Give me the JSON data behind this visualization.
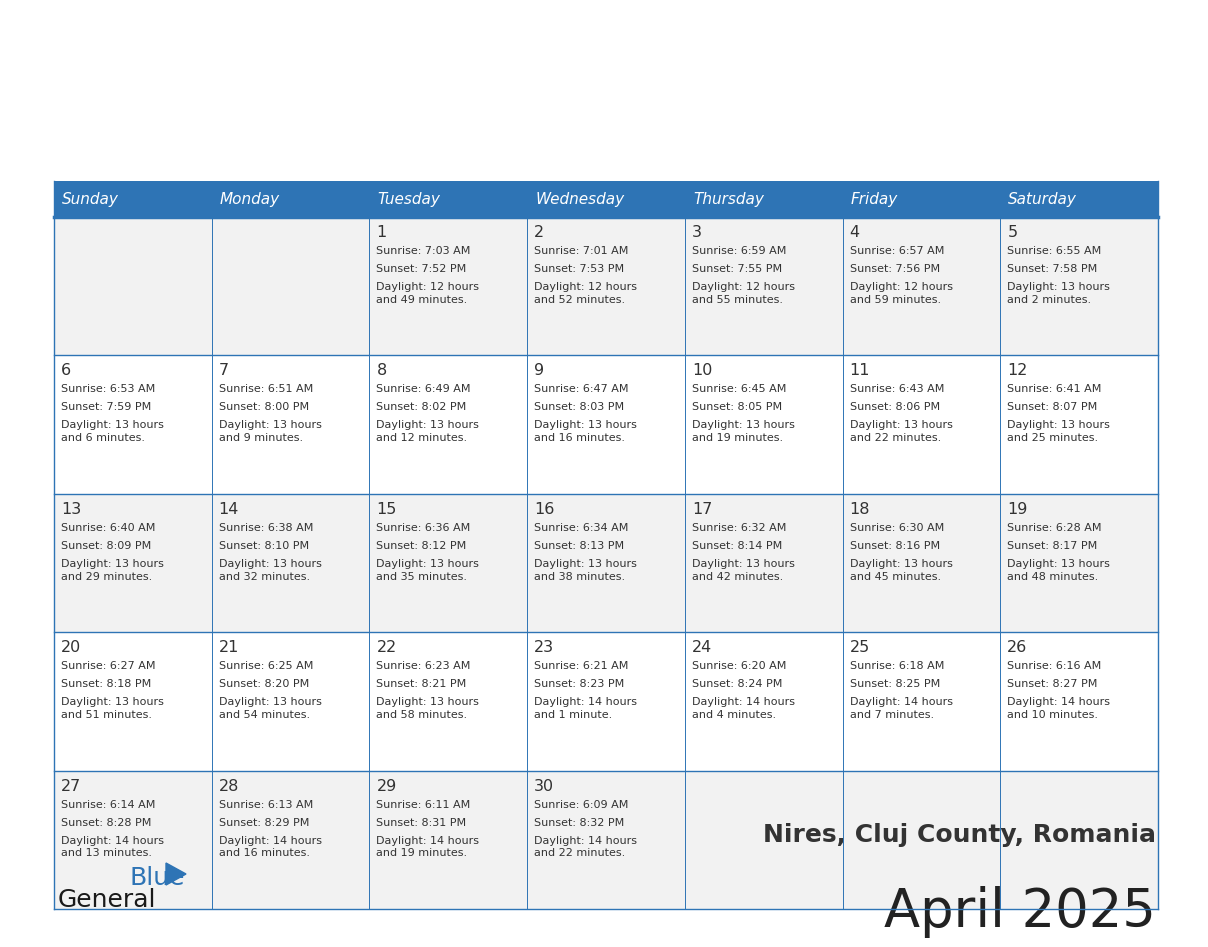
{
  "title": "April 2025",
  "subtitle": "Nires, Cluj County, Romania",
  "header_bg": "#2e74b5",
  "header_text_color": "#ffffff",
  "cell_bg_light": "#f2f2f2",
  "cell_bg_white": "#ffffff",
  "border_color": "#2e74b5",
  "text_color": "#333333",
  "days_of_week": [
    "Sunday",
    "Monday",
    "Tuesday",
    "Wednesday",
    "Thursday",
    "Friday",
    "Saturday"
  ],
  "weeks": [
    [
      {
        "day": "",
        "sunrise": "",
        "sunset": "",
        "daylight": ""
      },
      {
        "day": "",
        "sunrise": "",
        "sunset": "",
        "daylight": ""
      },
      {
        "day": "1",
        "sunrise": "Sunrise: 7:03 AM",
        "sunset": "Sunset: 7:52 PM",
        "daylight": "Daylight: 12 hours\nand 49 minutes."
      },
      {
        "day": "2",
        "sunrise": "Sunrise: 7:01 AM",
        "sunset": "Sunset: 7:53 PM",
        "daylight": "Daylight: 12 hours\nand 52 minutes."
      },
      {
        "day": "3",
        "sunrise": "Sunrise: 6:59 AM",
        "sunset": "Sunset: 7:55 PM",
        "daylight": "Daylight: 12 hours\nand 55 minutes."
      },
      {
        "day": "4",
        "sunrise": "Sunrise: 6:57 AM",
        "sunset": "Sunset: 7:56 PM",
        "daylight": "Daylight: 12 hours\nand 59 minutes."
      },
      {
        "day": "5",
        "sunrise": "Sunrise: 6:55 AM",
        "sunset": "Sunset: 7:58 PM",
        "daylight": "Daylight: 13 hours\nand 2 minutes."
      }
    ],
    [
      {
        "day": "6",
        "sunrise": "Sunrise: 6:53 AM",
        "sunset": "Sunset: 7:59 PM",
        "daylight": "Daylight: 13 hours\nand 6 minutes."
      },
      {
        "day": "7",
        "sunrise": "Sunrise: 6:51 AM",
        "sunset": "Sunset: 8:00 PM",
        "daylight": "Daylight: 13 hours\nand 9 minutes."
      },
      {
        "day": "8",
        "sunrise": "Sunrise: 6:49 AM",
        "sunset": "Sunset: 8:02 PM",
        "daylight": "Daylight: 13 hours\nand 12 minutes."
      },
      {
        "day": "9",
        "sunrise": "Sunrise: 6:47 AM",
        "sunset": "Sunset: 8:03 PM",
        "daylight": "Daylight: 13 hours\nand 16 minutes."
      },
      {
        "day": "10",
        "sunrise": "Sunrise: 6:45 AM",
        "sunset": "Sunset: 8:05 PM",
        "daylight": "Daylight: 13 hours\nand 19 minutes."
      },
      {
        "day": "11",
        "sunrise": "Sunrise: 6:43 AM",
        "sunset": "Sunset: 8:06 PM",
        "daylight": "Daylight: 13 hours\nand 22 minutes."
      },
      {
        "day": "12",
        "sunrise": "Sunrise: 6:41 AM",
        "sunset": "Sunset: 8:07 PM",
        "daylight": "Daylight: 13 hours\nand 25 minutes."
      }
    ],
    [
      {
        "day": "13",
        "sunrise": "Sunrise: 6:40 AM",
        "sunset": "Sunset: 8:09 PM",
        "daylight": "Daylight: 13 hours\nand 29 minutes."
      },
      {
        "day": "14",
        "sunrise": "Sunrise: 6:38 AM",
        "sunset": "Sunset: 8:10 PM",
        "daylight": "Daylight: 13 hours\nand 32 minutes."
      },
      {
        "day": "15",
        "sunrise": "Sunrise: 6:36 AM",
        "sunset": "Sunset: 8:12 PM",
        "daylight": "Daylight: 13 hours\nand 35 minutes."
      },
      {
        "day": "16",
        "sunrise": "Sunrise: 6:34 AM",
        "sunset": "Sunset: 8:13 PM",
        "daylight": "Daylight: 13 hours\nand 38 minutes."
      },
      {
        "day": "17",
        "sunrise": "Sunrise: 6:32 AM",
        "sunset": "Sunset: 8:14 PM",
        "daylight": "Daylight: 13 hours\nand 42 minutes."
      },
      {
        "day": "18",
        "sunrise": "Sunrise: 6:30 AM",
        "sunset": "Sunset: 8:16 PM",
        "daylight": "Daylight: 13 hours\nand 45 minutes."
      },
      {
        "day": "19",
        "sunrise": "Sunrise: 6:28 AM",
        "sunset": "Sunset: 8:17 PM",
        "daylight": "Daylight: 13 hours\nand 48 minutes."
      }
    ],
    [
      {
        "day": "20",
        "sunrise": "Sunrise: 6:27 AM",
        "sunset": "Sunset: 8:18 PM",
        "daylight": "Daylight: 13 hours\nand 51 minutes."
      },
      {
        "day": "21",
        "sunrise": "Sunrise: 6:25 AM",
        "sunset": "Sunset: 8:20 PM",
        "daylight": "Daylight: 13 hours\nand 54 minutes."
      },
      {
        "day": "22",
        "sunrise": "Sunrise: 6:23 AM",
        "sunset": "Sunset: 8:21 PM",
        "daylight": "Daylight: 13 hours\nand 58 minutes."
      },
      {
        "day": "23",
        "sunrise": "Sunrise: 6:21 AM",
        "sunset": "Sunset: 8:23 PM",
        "daylight": "Daylight: 14 hours\nand 1 minute."
      },
      {
        "day": "24",
        "sunrise": "Sunrise: 6:20 AM",
        "sunset": "Sunset: 8:24 PM",
        "daylight": "Daylight: 14 hours\nand 4 minutes."
      },
      {
        "day": "25",
        "sunrise": "Sunrise: 6:18 AM",
        "sunset": "Sunset: 8:25 PM",
        "daylight": "Daylight: 14 hours\nand 7 minutes."
      },
      {
        "day": "26",
        "sunrise": "Sunrise: 6:16 AM",
        "sunset": "Sunset: 8:27 PM",
        "daylight": "Daylight: 14 hours\nand 10 minutes."
      }
    ],
    [
      {
        "day": "27",
        "sunrise": "Sunrise: 6:14 AM",
        "sunset": "Sunset: 8:28 PM",
        "daylight": "Daylight: 14 hours\nand 13 minutes."
      },
      {
        "day": "28",
        "sunrise": "Sunrise: 6:13 AM",
        "sunset": "Sunset: 8:29 PM",
        "daylight": "Daylight: 14 hours\nand 16 minutes."
      },
      {
        "day": "29",
        "sunrise": "Sunrise: 6:11 AM",
        "sunset": "Sunset: 8:31 PM",
        "daylight": "Daylight: 14 hours\nand 19 minutes."
      },
      {
        "day": "30",
        "sunrise": "Sunrise: 6:09 AM",
        "sunset": "Sunset: 8:32 PM",
        "daylight": "Daylight: 14 hours\nand 22 minutes."
      },
      {
        "day": "",
        "sunrise": "",
        "sunset": "",
        "daylight": ""
      },
      {
        "day": "",
        "sunrise": "",
        "sunset": "",
        "daylight": ""
      },
      {
        "day": "",
        "sunrise": "",
        "sunset": "",
        "daylight": ""
      }
    ]
  ]
}
